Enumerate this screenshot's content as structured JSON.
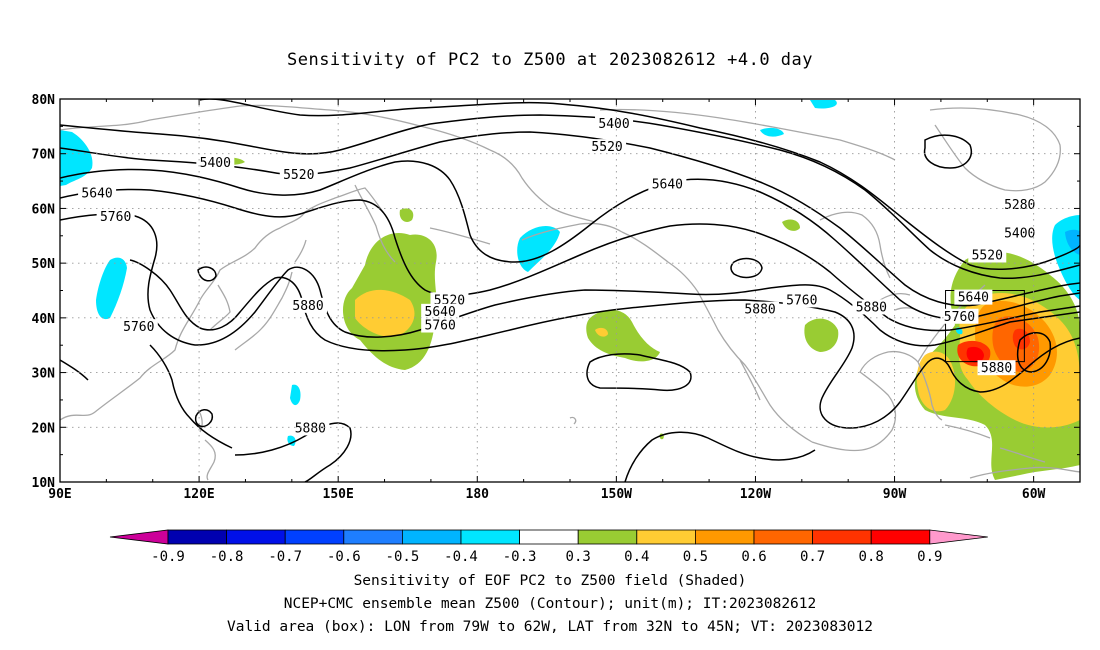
{
  "title": "Sensitivity of PC2 to Z500 at 2023082612 +4.0 day",
  "lat_labels": [
    "80N",
    "70N",
    "60N",
    "50N",
    "40N",
    "30N",
    "20N",
    "10N"
  ],
  "lon_labels": [
    "90E",
    "120E",
    "150E",
    "180",
    "150W",
    "120W",
    "90W",
    "60W"
  ],
  "contour_labels": [
    {
      "text": "5400",
      "lon": -150.5,
      "lat": 75.4
    },
    {
      "text": "5400",
      "lon": 123.5,
      "lat": 68.3
    },
    {
      "text": "5520",
      "lon": 141.5,
      "lat": 66.1
    },
    {
      "text": "5520",
      "lon": -152,
      "lat": 71.2
    },
    {
      "text": "5640",
      "lon": 98,
      "lat": 62.7
    },
    {
      "text": "5640",
      "lon": -139,
      "lat": 64.4
    },
    {
      "text": "5760",
      "lon": 102,
      "lat": 58.4
    },
    {
      "text": "5280",
      "lon": -63,
      "lat": 60.6
    },
    {
      "text": "5400",
      "lon": -63,
      "lat": 55.4
    },
    {
      "text": "5520",
      "lon": -70,
      "lat": 51.4
    },
    {
      "text": "5640",
      "lon": -73,
      "lat": 43.7
    },
    {
      "text": "5760",
      "lon": -76,
      "lat": 40.2
    },
    {
      "text": "5880",
      "lon": -68,
      "lat": 30.8
    },
    {
      "text": "5520",
      "lon": 174,
      "lat": 43.2
    },
    {
      "text": "5640",
      "lon": 172,
      "lat": 41.1
    },
    {
      "text": "5760",
      "lon": 172,
      "lat": 38.6
    },
    {
      "text": "5880",
      "lon": -119,
      "lat": 41.5
    },
    {
      "text": "5760",
      "lon": -110,
      "lat": 43.2
    },
    {
      "text": "5880",
      "lon": -95,
      "lat": 41.9
    },
    {
      "text": "5880",
      "lon": 143.5,
      "lat": 42.2
    },
    {
      "text": "5760",
      "lon": 107,
      "lat": 38.3
    },
    {
      "text": "5880",
      "lon": 144,
      "lat": 19.8
    }
  ],
  "valid_box": {
    "lon_west": -79,
    "lon_east": -62,
    "lat_south": 32,
    "lat_north": 45
  },
  "colorbar": {
    "labels": [
      "-0.9",
      "-0.8",
      "-0.7",
      "-0.6",
      "-0.5",
      "-0.4",
      "-0.3",
      "0.3",
      "0.4",
      "0.5",
      "0.6",
      "0.7",
      "0.8",
      "0.9"
    ],
    "colors": [
      "#0000b0",
      "#0010e8",
      "#0040ff",
      "#1e7eff",
      "#00b4ff",
      "#00e6ff",
      "#ffffff",
      "#99cc33",
      "#ffcc33",
      "#ff9900",
      "#ff6600",
      "#ff3300",
      "#ff0000"
    ],
    "end_low_color": "#cc0099",
    "end_high_color": "#ff99cc"
  },
  "caption_lines": [
    "Sensitivity of EOF PC2 to Z500 field (Shaded)",
    "NCEP+CMC ensemble mean Z500 (Contour); unit(m); IT:2023082612",
    "Valid area (box): LON from 79W to 62W, LAT from 32N to 45N; VT: 2023083012"
  ]
}
